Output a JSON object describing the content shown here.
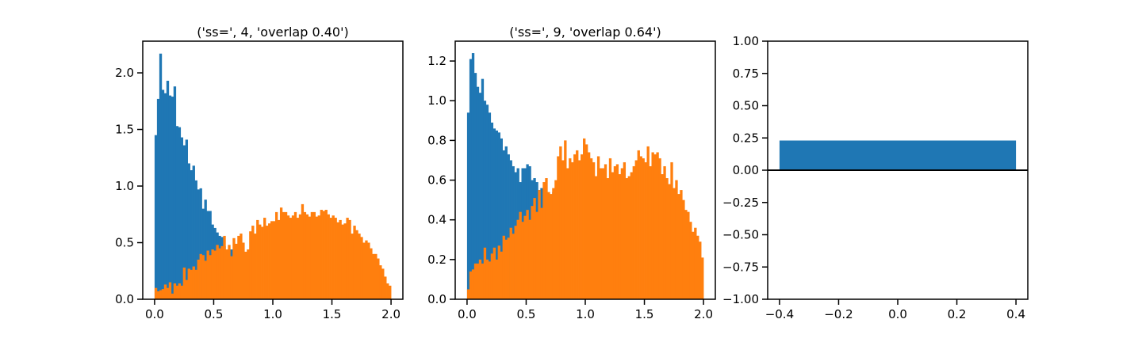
{
  "colors": {
    "series_1": "#1f77b4",
    "series_2": "#ff7f0e",
    "axes": "#000000"
  },
  "chart_data": [
    {
      "type": "bar",
      "title": "('ss=', 4, 'overlap 0.40')",
      "xlabel": "",
      "ylabel": "",
      "bin_width": 0.02,
      "bins_start": 0.0,
      "xlim": [
        -0.1,
        2.1
      ],
      "ylim": [
        0,
        2.28
      ],
      "xticks": [
        0.0,
        0.5,
        1.0,
        1.5,
        2.0
      ],
      "xtick_labels": [
        "0.0",
        "0.5",
        "1.0",
        "1.5",
        "2.0"
      ],
      "yticks": [
        0.0,
        0.5,
        1.0,
        1.5,
        2.0
      ],
      "ytick_labels": [
        "0.0",
        "0.5",
        "1.0",
        "1.5",
        "2.0"
      ],
      "series": [
        {
          "values": [
            1.45,
            1.77,
            2.17,
            1.85,
            1.82,
            1.93,
            1.8,
            1.79,
            1.88,
            1.53,
            1.52,
            1.43,
            1.36,
            1.41,
            1.2,
            1.14,
            1.18,
            1.05,
            0.97,
            0.98,
            0.8,
            0.88,
            0.78,
            0.78,
            0.66,
            0.63,
            0.59,
            0.56,
            0.55,
            0.47,
            0.4,
            0.43,
            0.44,
            0.36,
            0.38,
            0.33,
            0.35,
            0.3
          ]
        },
        {
          "values": [
            0.1,
            0.07,
            0.08,
            0.09,
            0.13,
            0.1,
            0.15,
            0.05,
            0.14,
            0.12,
            0.14,
            0.12,
            0.28,
            0.17,
            0.27,
            0.26,
            0.29,
            0.26,
            0.35,
            0.4,
            0.39,
            0.34,
            0.43,
            0.39,
            0.44,
            0.43,
            0.48,
            0.45,
            0.47,
            0.56,
            0.44,
            0.48,
            0.38,
            0.54,
            0.49,
            0.56,
            0.58,
            0.5,
            0.42,
            0.44,
            0.6,
            0.65,
            0.58,
            0.7,
            0.66,
            0.64,
            0.72,
            0.65,
            0.67,
            0.69,
            0.69,
            0.77,
            0.7,
            0.81,
            0.77,
            0.77,
            0.74,
            0.72,
            0.74,
            0.77,
            0.72,
            0.75,
            0.84,
            0.77,
            0.75,
            0.73,
            0.77,
            0.77,
            0.73,
            0.74,
            0.79,
            0.78,
            0.79,
            0.75,
            0.72,
            0.74,
            0.72,
            0.68,
            0.7,
            0.66,
            0.67,
            0.72,
            0.7,
            0.58,
            0.65,
            0.61,
            0.58,
            0.55,
            0.5,
            0.52,
            0.5,
            0.45,
            0.4,
            0.4,
            0.36,
            0.3,
            0.27,
            0.2,
            0.14,
            0.12
          ]
        }
      ]
    },
    {
      "type": "bar",
      "title": "('ss=', 9, 'overlap 0.64')",
      "xlabel": "",
      "ylabel": "",
      "bin_width": 0.02,
      "bins_start": 0.0,
      "xlim": [
        -0.1,
        2.1
      ],
      "ylim": [
        0,
        1.3
      ],
      "xticks": [
        0.0,
        0.5,
        1.0,
        1.5,
        2.0
      ],
      "xtick_labels": [
        "0.0",
        "0.5",
        "1.0",
        "1.5",
        "2.0"
      ],
      "yticks": [
        0.0,
        0.2,
        0.4,
        0.6,
        0.8,
        1.0,
        1.2
      ],
      "ytick_labels": [
        "0.0",
        "0.2",
        "0.4",
        "0.6",
        "0.8",
        "1.0",
        "1.2"
      ],
      "series": [
        {
          "values": [
            0.94,
            1.21,
            1.24,
            1.14,
            1.07,
            1.04,
            1.11,
            1.0,
            0.98,
            0.94,
            0.89,
            0.86,
            0.85,
            0.84,
            0.81,
            0.75,
            0.77,
            0.73,
            0.7,
            0.67,
            0.64,
            0.66,
            0.59,
            0.66,
            0.66,
            0.68,
            0.67,
            0.6,
            0.61,
            0.59,
            0.55,
            0.56,
            0.55,
            0.53,
            0.52,
            0.5,
            0.54,
            0.52
          ]
        },
        {
          "values": [
            0.05,
            0.14,
            0.15,
            0.18,
            0.18,
            0.2,
            0.18,
            0.26,
            0.2,
            0.19,
            0.23,
            0.26,
            0.2,
            0.27,
            0.24,
            0.32,
            0.3,
            0.31,
            0.36,
            0.33,
            0.37,
            0.4,
            0.44,
            0.39,
            0.42,
            0.45,
            0.4,
            0.47,
            0.51,
            0.44,
            0.55,
            0.46,
            0.59,
            0.61,
            0.54,
            0.53,
            0.56,
            0.6,
            0.72,
            0.77,
            0.7,
            0.8,
            0.66,
            0.71,
            0.69,
            0.73,
            0.75,
            0.7,
            0.73,
            0.81,
            0.78,
            0.74,
            0.71,
            0.69,
            0.62,
            0.72,
            0.66,
            0.66,
            0.68,
            0.61,
            0.71,
            0.64,
            0.67,
            0.68,
            0.63,
            0.66,
            0.69,
            0.61,
            0.62,
            0.64,
            0.67,
            0.7,
            0.75,
            0.72,
            0.71,
            0.69,
            0.77,
            0.67,
            0.74,
            0.73,
            0.74,
            0.71,
            0.63,
            0.67,
            0.61,
            0.58,
            0.69,
            0.56,
            0.6,
            0.53,
            0.55,
            0.5,
            0.45,
            0.44,
            0.39,
            0.34,
            0.36,
            0.32,
            0.29,
            0.21
          ]
        }
      ]
    },
    {
      "type": "bar",
      "title": "",
      "xlabel": "",
      "ylabel": "",
      "categories": [
        "0"
      ],
      "bar_center": 0.0,
      "bar_width": 0.8,
      "values": [
        0.23
      ],
      "xlim": [
        -0.44,
        0.44
      ],
      "ylim": [
        -1.0,
        1.0
      ],
      "baseline": 0.0,
      "xticks": [
        -0.4,
        -0.2,
        0.0,
        0.2,
        0.4
      ],
      "xtick_labels": [
        "−0.4",
        "−0.2",
        "0.0",
        "0.2",
        "0.4"
      ],
      "yticks": [
        -1.0,
        -0.75,
        -0.5,
        -0.25,
        0.0,
        0.25,
        0.5,
        0.75,
        1.0
      ],
      "ytick_labels": [
        "−1.00",
        "−0.75",
        "−0.50",
        "−0.25",
        "0.00",
        "0.25",
        "0.50",
        "0.75",
        "1.00"
      ]
    }
  ]
}
